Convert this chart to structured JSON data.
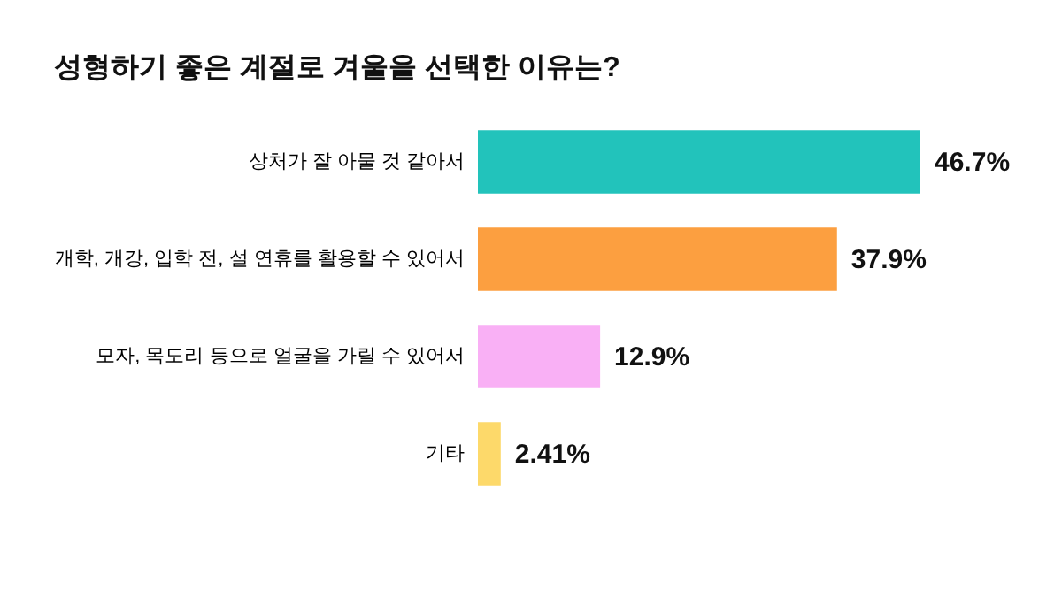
{
  "chart_data": {
    "type": "bar",
    "orientation": "horizontal",
    "title": "성형하기 좋은 계절로 겨울을 선택한 이유는?",
    "categories": [
      "상처가 잘 아물 것 같아서",
      "개학, 개강, 입학 전, 설 연휴를 활용할 수 있어서",
      "모자, 목도리 등으로 얼굴을 가릴 수 있어서",
      "기타"
    ],
    "values": [
      46.7,
      37.9,
      12.9,
      2.41
    ],
    "colors": [
      "#22c3bb",
      "#fc9f40",
      "#f9b0f5",
      "#fdd96a"
    ],
    "value_labels": [
      "46.7%",
      "37.9%",
      "12.9%",
      "2.41%"
    ]
  }
}
